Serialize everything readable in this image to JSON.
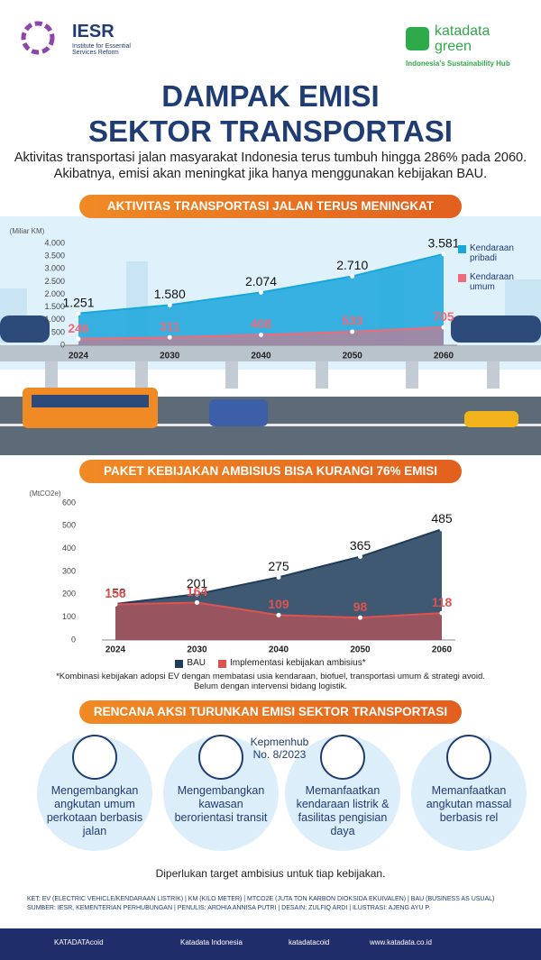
{
  "header": {
    "logo": "IESR",
    "logo_full": "Institute for Essential Services Reform",
    "brand": [
      "katadata",
      "green"
    ],
    "tagline": "Indonesia's Sustainability Hub"
  },
  "title": [
    "DAMPAK EMISI",
    "SEKTOR TRANSPORTASI"
  ],
  "intro": "Aktivitas transportasi jalan masyarakat Indonesia terus tumbuh hingga 286% pada 2060. Akibatnya, emisi akan meningkat jika hanya menggunakan kebijakan BAU.",
  "chart_data": [
    {
      "type": "area",
      "title": "AKTIVITAS TRANSPORTASI JALAN TERUS MENINGKAT",
      "y_label": "(Miliar KM)",
      "categories": [
        "2024",
        "2030",
        "2040",
        "2050",
        "2060"
      ],
      "series": [
        {
          "name": "Kendaraan pribadi",
          "color": "#19a6dc",
          "values": [
            1251,
            1580,
            2074,
            2710,
            3581
          ],
          "value_labels": [
            "1.251",
            "1.580",
            "2.074",
            "2.710",
            "3.581"
          ]
        },
        {
          "name": "Kendaraan umum",
          "color": "#f06a78",
          "values": [
            246,
            311,
            408,
            533,
            705
          ]
        }
      ],
      "ylim": [
        0,
        4000
      ],
      "yticks": [
        0,
        500,
        {
          "value": 1000,
          "label": "1.000"
        },
        {
          "value": 1500,
          "label": "1.500"
        },
        {
          "value": 2000,
          "label": "2.000"
        },
        {
          "value": 2500,
          "label": "2.500"
        },
        {
          "value": 3000,
          "label": "3.000"
        },
        {
          "value": 3500,
          "label": "3.500"
        },
        {
          "value": 4000,
          "label": "4.000"
        }
      ],
      "grid": false,
      "legend": "right"
    },
    {
      "type": "area",
      "title": "PAKET KEBIJAKAN AMBISIUS BISA KURANGI 76% EMISI",
      "y_label": "(MtCO2e)",
      "categories": [
        "2024",
        "2030",
        "2040",
        "2050",
        "2060"
      ],
      "series": [
        {
          "name": "BAU",
          "color": "#1f3c5a",
          "values": [
            158,
            201,
            275,
            365,
            485
          ]
        },
        {
          "name": "Implementasi kebijakan ambisius*",
          "color": "#e0524f",
          "values": [
            156,
            164,
            109,
            98,
            118
          ]
        }
      ],
      "ylim": [
        0,
        600
      ],
      "yticks": [
        0,
        100,
        200,
        300,
        400,
        500,
        600
      ],
      "grid": false,
      "legend": "bottom",
      "footnote": "*Kombinasi kebijakan adopsi EV dengan membatasi usia kendaraan, biofuel, transportasi umum & strategi avoid. Belum dengan intervensi bidang logistik."
    }
  ],
  "actions": {
    "title": "RENCANA AKSI TURUNKAN EMISI SEKTOR TRANSPORTASI",
    "reference": [
      "Kepmenhub",
      "No. 8/2023"
    ],
    "items": [
      "Mengembangkan angkutan umum perkotaan berbasis jalan",
      "Mengembangkan kawasan berorientasi transit",
      "Memanfaatkan kendaraan listrik & fasilitas pengisian daya",
      "Memanfaatkan angkutan massal berbasis rel"
    ],
    "note": "Diperlukan target ambisius untuk tiap kebijakan."
  },
  "footer": {
    "notes": [
      "KET: EV (ELECTRIC VEHICLE/KENDARAAN LISTRIK) | KM (KILO METER) | MTCO2E (JUTA TON KARBON DIOKSIDA EKUIVALEN) | BAU (BUSINESS AS USUAL)",
      "SUMBER: IESR, KEMENTERIAN PERHUBUNGAN | PENULIS: ARDHIA ANNISA PUTRI | DESAIN: ZULFIQ ARDI | ILUSTRASI: AJENG AYU P."
    ],
    "social": [
      "KATADATAcoid",
      "Katadata Indonesia",
      "katadatacoid",
      "www.katadata.co.id"
    ]
  }
}
